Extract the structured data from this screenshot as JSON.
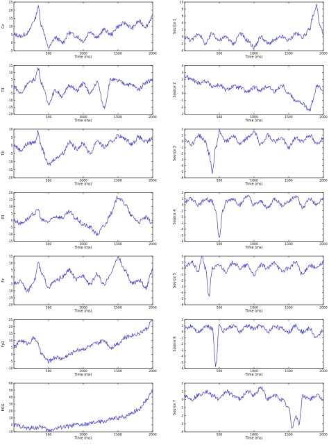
{
  "figure": {
    "line_color": "#3a3ad0",
    "axis_color": "#000000",
    "background": "#ffffff"
  },
  "chart_data": [
    {
      "type": "line",
      "panel": "left-1",
      "ylabel": "Cz",
      "xlabel": "Time (ms)",
      "xlim": [
        0,
        2000
      ],
      "ylim": [
        -5,
        25
      ],
      "xticks": [
        "500",
        "1000",
        "1500",
        "2000"
      ],
      "yticks": [
        "25",
        "20",
        "15",
        "10",
        "5",
        "0",
        "-5"
      ],
      "x": [
        0,
        100,
        200,
        300,
        350,
        400,
        500,
        600,
        700,
        800,
        900,
        1000,
        1100,
        1200,
        1300,
        1400,
        1500,
        1600,
        1700,
        1800,
        1900,
        2000
      ],
      "series": [
        {
          "values": [
            5,
            4,
            6,
            14,
            22,
            10,
            -3,
            3,
            0,
            6,
            4,
            1,
            7,
            3,
            8,
            5,
            10,
            12,
            9,
            13,
            10,
            16
          ]
        }
      ]
    },
    {
      "type": "line",
      "panel": "left-2",
      "ylabel": "T3",
      "xlabel": "Time (ms)",
      "xlim": [
        0,
        2000
      ],
      "ylim": [
        -20,
        15
      ],
      "xticks": [
        "500",
        "1000",
        "1500",
        "2000"
      ],
      "yticks": [
        "15",
        "10",
        "5",
        "0",
        "-5",
        "-10",
        "-15",
        "-20"
      ],
      "x": [
        0,
        100,
        200,
        300,
        350,
        400,
        500,
        600,
        700,
        800,
        900,
        1000,
        1100,
        1200,
        1300,
        1400,
        1500,
        1600,
        1700,
        1800,
        1900,
        2000
      ],
      "series": [
        {
          "values": [
            0,
            -5,
            2,
            5,
            13,
            2,
            -12,
            -3,
            -7,
            1,
            -3,
            2,
            -5,
            3,
            -15,
            5,
            4,
            2,
            1,
            -2,
            3,
            5
          ]
        }
      ]
    },
    {
      "type": "line",
      "panel": "left-3",
      "ylabel": "T4",
      "xlabel": "Time (ms)",
      "xlim": [
        0,
        2000
      ],
      "ylim": [
        -20,
        10
      ],
      "xticks": [
        "500",
        "1000",
        "1500",
        "2000"
      ],
      "yticks": [
        "10",
        "5",
        "0",
        "-5",
        "-10",
        "-15",
        "-20"
      ],
      "x": [
        0,
        100,
        200,
        300,
        350,
        400,
        500,
        600,
        700,
        800,
        900,
        1000,
        1100,
        1200,
        1300,
        1400,
        1500,
        1600,
        1700,
        1800,
        1900,
        2000
      ],
      "series": [
        {
          "values": [
            0,
            -3,
            1,
            2,
            8,
            -2,
            -12,
            -8,
            -5,
            2,
            -2,
            1,
            -5,
            3,
            -1,
            2,
            6,
            4,
            1,
            5,
            2,
            4
          ]
        }
      ]
    },
    {
      "type": "line",
      "panel": "left-4",
      "ylabel": "P3",
      "xlabel": "Time (ms)",
      "xlim": [
        0,
        2000
      ],
      "ylim": [
        -15,
        20
      ],
      "xticks": [
        "500",
        "1000",
        "1500",
        "2000"
      ],
      "yticks": [
        "20",
        "15",
        "10",
        "5",
        "0",
        "-5",
        "-10",
        "-15"
      ],
      "x": [
        0,
        100,
        200,
        300,
        350,
        400,
        500,
        600,
        700,
        800,
        900,
        1000,
        1100,
        1200,
        1300,
        1400,
        1500,
        1600,
        1700,
        1800,
        1900,
        2000
      ],
      "series": [
        {
          "values": [
            0,
            -2,
            1,
            5,
            8,
            0,
            -1,
            3,
            2,
            6,
            1,
            -3,
            -5,
            -10,
            -4,
            5,
            17,
            12,
            3,
            -1,
            2,
            -2
          ]
        }
      ]
    },
    {
      "type": "line",
      "panel": "left-5",
      "ylabel": "Fz",
      "xlabel": "Time (ms)",
      "xlim": [
        0,
        2000
      ],
      "ylim": [
        -20,
        15
      ],
      "xticks": [
        "500",
        "1000",
        "1500",
        "2000"
      ],
      "yticks": [
        "15",
        "10",
        "5",
        "0",
        "-5",
        "-10",
        "-15",
        "-20"
      ],
      "x": [
        0,
        100,
        200,
        300,
        350,
        400,
        500,
        600,
        700,
        800,
        900,
        1000,
        1100,
        1200,
        1300,
        1400,
        1500,
        1600,
        1700,
        1800,
        1900,
        2000
      ],
      "series": [
        {
          "values": [
            -5,
            -3,
            -10,
            -2,
            10,
            2,
            -7,
            -3,
            0,
            5,
            -2,
            1,
            -5,
            2,
            -6,
            3,
            14,
            5,
            -5,
            -2,
            -8,
            5
          ]
        }
      ]
    },
    {
      "type": "line",
      "panel": "left-6",
      "ylabel": "Fp2",
      "xlabel": "Time (ms)",
      "xlim": [
        0,
        2000
      ],
      "ylim": [
        -10,
        25
      ],
      "xticks": [
        "500",
        "1000",
        "1500",
        "2000"
      ],
      "yticks": [
        "25",
        "20",
        "15",
        "10",
        "5",
        "0",
        "-5",
        "-10"
      ],
      "x": [
        0,
        100,
        200,
        300,
        350,
        400,
        500,
        600,
        700,
        800,
        900,
        1000,
        1100,
        1200,
        1300,
        1400,
        1500,
        1600,
        1700,
        1800,
        1900,
        2000
      ],
      "series": [
        {
          "values": [
            5,
            10,
            8,
            12,
            7,
            0,
            -5,
            -2,
            -3,
            0,
            3,
            4,
            6,
            8,
            10,
            5,
            8,
            12,
            14,
            15,
            18,
            25
          ]
        }
      ]
    },
    {
      "type": "line",
      "panel": "left-7",
      "ylabel": "EOG",
      "xlabel": "Time (ms)",
      "xlim": [
        0,
        2000
      ],
      "ylim": [
        -10,
        60
      ],
      "xticks": [
        "500",
        "1000",
        "1500",
        "2000"
      ],
      "yticks": [
        "60",
        "50",
        "40",
        "30",
        "20",
        "10",
        "0",
        "-10"
      ],
      "x": [
        0,
        100,
        200,
        300,
        400,
        500,
        600,
        700,
        800,
        900,
        1000,
        1100,
        1200,
        1300,
        1400,
        1500,
        1600,
        1700,
        1800,
        1900,
        2000
      ],
      "series": [
        {
          "values": [
            0,
            -2,
            -5,
            -4,
            -3,
            -8,
            -5,
            -3,
            -2,
            0,
            0,
            2,
            4,
            5,
            8,
            10,
            12,
            18,
            22,
            35,
            50
          ]
        }
      ]
    },
    {
      "type": "line",
      "panel": "right-1",
      "ylabel": "Source 1",
      "xlabel": "Time (ms)",
      "xlim": [
        0,
        2000
      ],
      "ylim": [
        -4,
        10
      ],
      "xticks": [
        "500",
        "1000",
        "1500",
        "2000"
      ],
      "yticks": [
        "10",
        "8",
        "6",
        "4",
        "2",
        "0",
        "-2",
        "-4"
      ],
      "x": [
        0,
        100,
        200,
        300,
        400,
        500,
        600,
        700,
        800,
        900,
        1000,
        1100,
        1200,
        1300,
        1400,
        1500,
        1600,
        1700,
        1800,
        1850,
        1900,
        1950,
        2000
      ],
      "series": [
        {
          "values": [
            0,
            -1,
            1,
            -2,
            1,
            -1,
            0,
            -2,
            1,
            -1,
            -3,
            0,
            -2,
            -1,
            0,
            -1,
            1,
            0,
            2,
            6,
            9,
            3,
            1
          ]
        }
      ]
    },
    {
      "type": "line",
      "panel": "right-2",
      "ylabel": "Source 2",
      "xlabel": "Time (ms)",
      "xlim": [
        0,
        2000
      ],
      "ylim": [
        -3,
        4
      ],
      "xticks": [
        "500",
        "1000",
        "1500",
        "2000"
      ],
      "yticks": [
        "4",
        "3",
        "2",
        "1",
        "0",
        "-1",
        "-2",
        "-3"
      ],
      "x": [
        0,
        100,
        200,
        300,
        400,
        500,
        600,
        700,
        800,
        900,
        1000,
        1100,
        1200,
        1300,
        1400,
        1500,
        1600,
        1700,
        1800,
        1850,
        1900,
        2000
      ],
      "series": [
        {
          "values": [
            2.5,
            2,
            1.5,
            1.8,
            1,
            1.2,
            0.5,
            1,
            0.8,
            0.2,
            0.8,
            0.5,
            1,
            0.3,
            1.2,
            0,
            -1,
            -1.5,
            -2.5,
            -1,
            1,
            0.5
          ]
        }
      ]
    },
    {
      "type": "line",
      "panel": "right-3",
      "ylabel": "Source 3",
      "xlabel": "Time (ms)",
      "xlim": [
        0,
        2000
      ],
      "ylim": [
        -6,
        2
      ],
      "xticks": [
        "500",
        "1000",
        "1500",
        "2000"
      ],
      "yticks": [
        "2",
        "1",
        "0",
        "-1",
        "-2",
        "-3",
        "-4",
        "-5",
        "-6"
      ],
      "x": [
        0,
        100,
        200,
        300,
        350,
        400,
        450,
        500,
        600,
        700,
        800,
        900,
        1000,
        1100,
        1200,
        1300,
        1400,
        1500,
        1600,
        1700,
        1800,
        1900,
        2000
      ],
      "series": [
        {
          "values": [
            0.5,
            -0.5,
            1,
            0,
            -2,
            -5,
            -1,
            1.5,
            0,
            1,
            -0.5,
            0.5,
            1.5,
            -0.5,
            1,
            0,
            0.5,
            -1,
            0.5,
            0,
            1,
            -0.5,
            0.5
          ]
        }
      ]
    },
    {
      "type": "line",
      "panel": "right-4",
      "ylabel": "Source 4",
      "xlabel": "Time (ms)",
      "xlim": [
        0,
        2000
      ],
      "ylim": [
        -6,
        2
      ],
      "xticks": [
        "500",
        "1000",
        "1500",
        "2000"
      ],
      "yticks": [
        "2",
        "1",
        "0",
        "-1",
        "-2",
        "-3",
        "-4",
        "-5",
        "-6"
      ],
      "x": [
        0,
        100,
        200,
        300,
        400,
        450,
        500,
        550,
        600,
        700,
        800,
        900,
        1000,
        1100,
        1200,
        1300,
        1400,
        1500,
        1600,
        1700,
        1800,
        1900,
        2000
      ],
      "series": [
        {
          "values": [
            0.5,
            1,
            0,
            1,
            0.5,
            -1,
            -5.5,
            -1,
            0.5,
            1,
            0,
            1.5,
            0,
            0.5,
            -0.5,
            1,
            0,
            0.5,
            1.5,
            -0.5,
            1,
            0,
            1
          ]
        }
      ]
    },
    {
      "type": "line",
      "panel": "right-5",
      "ylabel": "Source 5",
      "xlabel": "Time (ms)",
      "xlim": [
        0,
        2000
      ],
      "ylim": [
        -6,
        2
      ],
      "xticks": [
        "500",
        "1000",
        "1500",
        "2000"
      ],
      "yticks": [
        "2",
        "1",
        "0",
        "-1",
        "-2",
        "-3",
        "-4",
        "-5",
        "-6"
      ],
      "x": [
        0,
        100,
        200,
        250,
        300,
        350,
        400,
        500,
        600,
        700,
        800,
        900,
        1000,
        1100,
        1200,
        1300,
        1400,
        1500,
        1600,
        1700,
        1800,
        1900,
        2000
      ],
      "series": [
        {
          "values": [
            0,
            1,
            -0.5,
            2,
            0,
            -4.5,
            0,
            0.5,
            -0.5,
            1,
            0,
            0.5,
            -1,
            0.5,
            0,
            1,
            -0.5,
            0,
            1,
            -1,
            0.5,
            0,
            1
          ]
        }
      ]
    },
    {
      "type": "line",
      "panel": "right-6",
      "ylabel": "Source 6",
      "xlabel": "Time (ms)",
      "xlim": [
        0,
        2000
      ],
      "ylim": [
        -6,
        2
      ],
      "xticks": [
        "500",
        "1000",
        "1500",
        "2000"
      ],
      "yticks": [
        "2",
        "1",
        "0",
        "-1",
        "-2",
        "-3",
        "-4",
        "-5",
        "-6"
      ],
      "x": [
        0,
        100,
        200,
        300,
        400,
        450,
        500,
        550,
        600,
        700,
        800,
        900,
        1000,
        1100,
        1200,
        1300,
        1400,
        1500,
        1600,
        1700,
        1800,
        1900,
        2000
      ],
      "series": [
        {
          "values": [
            0.5,
            1,
            0,
            1,
            0.5,
            -5.5,
            1.5,
            0,
            0.5,
            1,
            0,
            1,
            0.5,
            1,
            0,
            1,
            0.5,
            0,
            1,
            0,
            0.5,
            -1,
            0.5
          ]
        }
      ]
    },
    {
      "type": "line",
      "panel": "right-7",
      "ylabel": "Source 7",
      "xlabel": "Time (ms)",
      "xlim": [
        0,
        2000
      ],
      "ylim": [
        -4,
        2
      ],
      "xticks": [
        "500",
        "1000",
        "1500",
        "2000"
      ],
      "yticks": [
        "2",
        "1",
        "0",
        "-1",
        "-2",
        "-3",
        "-4"
      ],
      "x": [
        0,
        100,
        200,
        300,
        400,
        500,
        600,
        700,
        800,
        900,
        1000,
        1100,
        1200,
        1300,
        1400,
        1500,
        1550,
        1600,
        1650,
        1700,
        1800,
        1900,
        2000
      ],
      "series": [
        {
          "values": [
            0.5,
            0,
            0.5,
            1,
            0.5,
            0,
            1,
            0.5,
            0,
            1,
            0.5,
            1.5,
            0,
            0.5,
            0,
            -1,
            -3.5,
            -2,
            -3,
            0.5,
            0,
            0.5,
            0
          ]
        }
      ]
    }
  ]
}
